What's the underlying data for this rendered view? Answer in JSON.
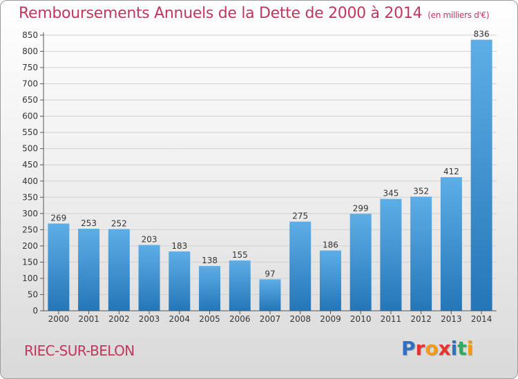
{
  "header": {
    "title": "Remboursements Annuels de la Dette de 2000 à 2014",
    "subtitle": "(en milliers d'€)"
  },
  "footer": {
    "commune": "RIEC-SUR-BELON",
    "logo_text": "Proxiti",
    "logo_colors": [
      "#2f6fc4",
      "#e8322d",
      "#f39c12",
      "#e8322d",
      "#2f6fc4",
      "#27ae60",
      "#f39c12"
    ]
  },
  "colors": {
    "bar_top": "#5daee6",
    "bar_bottom": "#2576b8",
    "text": "#333333",
    "accent": "#c2365c",
    "grid": "#d0d0d0"
  },
  "chart_data": {
    "type": "bar",
    "title": "Remboursements Annuels de la Dette de 2000 à 2014",
    "subtitle": "(en milliers d'€)",
    "categories": [
      "2000",
      "2001",
      "2002",
      "2003",
      "2004",
      "2005",
      "2006",
      "2007",
      "2008",
      "2009",
      "2010",
      "2011",
      "2012",
      "2013",
      "2014"
    ],
    "values": [
      269,
      253,
      252,
      203,
      183,
      138,
      155,
      97,
      275,
      186,
      299,
      345,
      352,
      412,
      836
    ],
    "ylim": [
      0,
      850
    ],
    "yticks": [
      0,
      50,
      100,
      150,
      200,
      250,
      300,
      350,
      400,
      450,
      500,
      550,
      600,
      650,
      700,
      750,
      800,
      850
    ],
    "grid": true,
    "data_labels": true
  }
}
